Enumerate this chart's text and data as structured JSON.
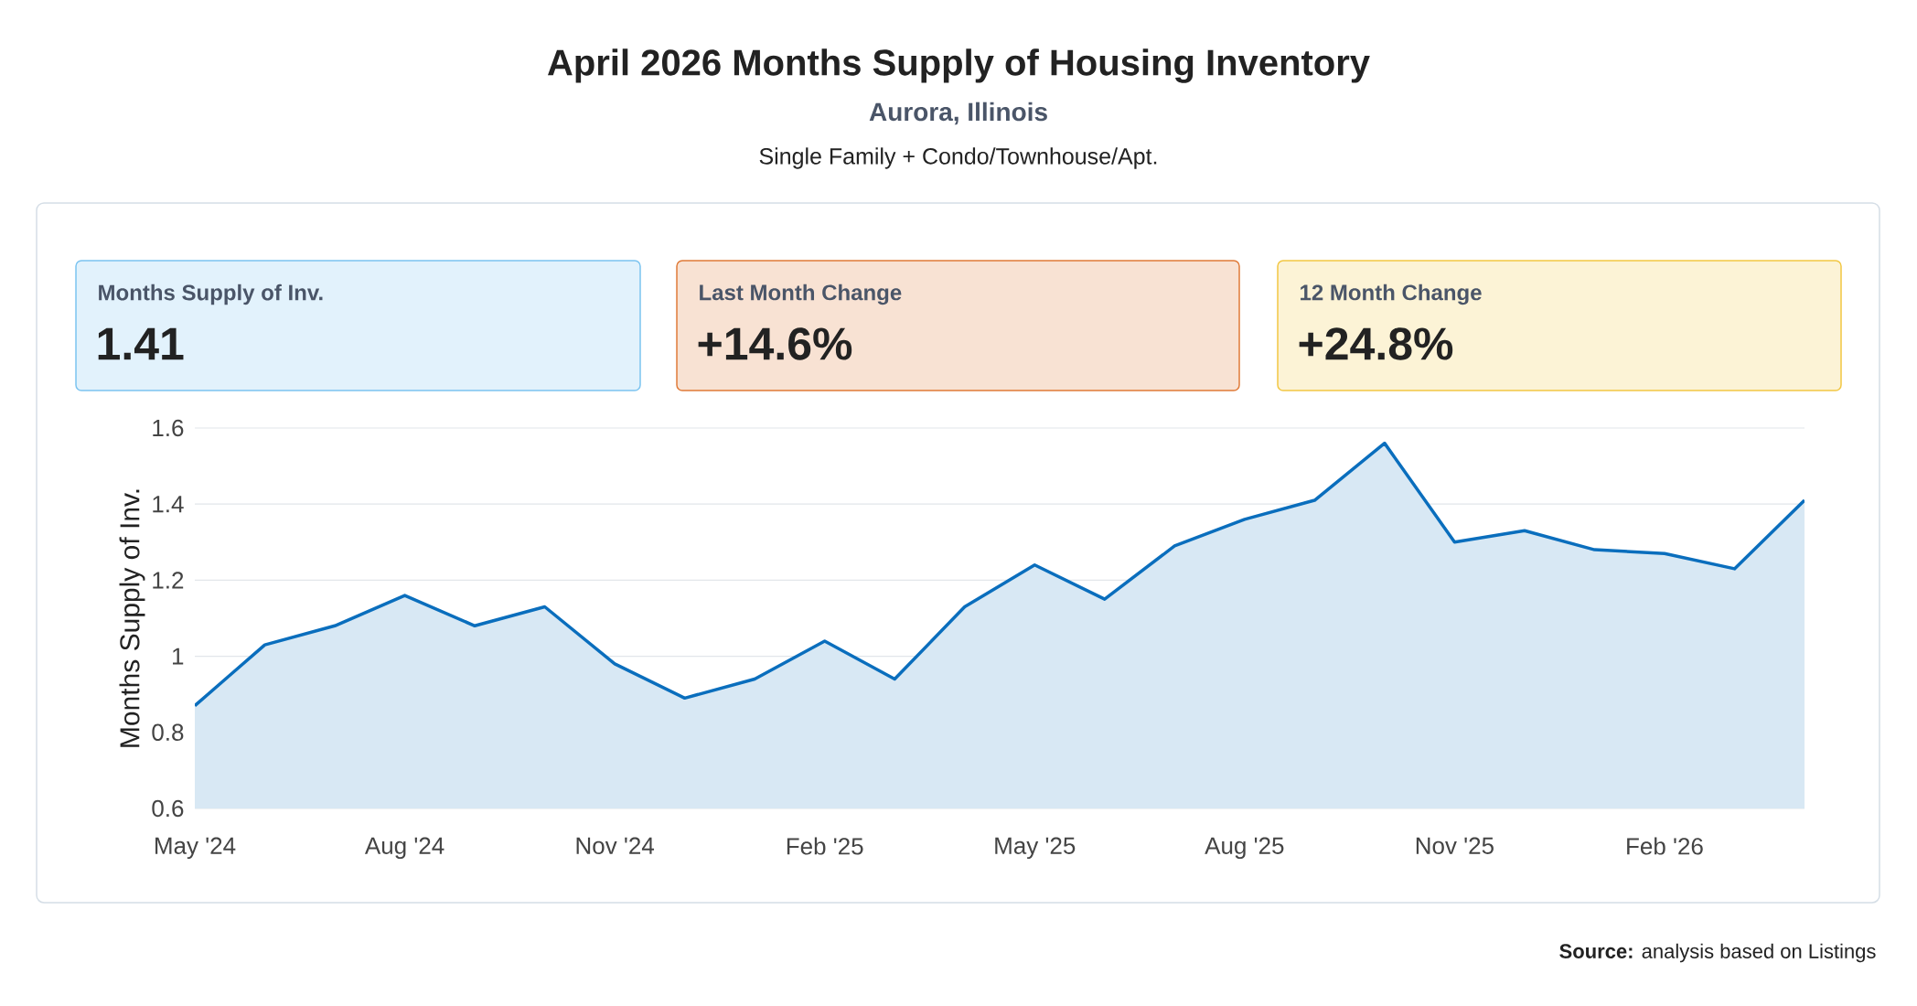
{
  "chart_data": [
    {
      "type": "area",
      "title": "April 2026 Months Supply of Housing Inventory",
      "subtitle": "Aurora, Illinois",
      "ylabel": "Months Supply of Inv.",
      "annotations": [
        "Single Family + Condo/Townhouse/Apt.",
        "**Source:** analysis based on Listings"
      ],
      "categories": [
        "May '24",
        null,
        null,
        "Aug '24",
        null,
        null,
        "Nov '24",
        null,
        null,
        "Feb '25",
        null,
        null,
        "May '25",
        null,
        null,
        "Aug '25",
        null,
        null,
        "Nov '25",
        null,
        null,
        "Feb '26",
        null,
        null
      ],
      "values": [
        0.87,
        1.03,
        1.08,
        1.16,
        1.08,
        1.13,
        0.98,
        0.89,
        0.94,
        1.04,
        0.94,
        1.13,
        1.24,
        1.15,
        1.29,
        1.36,
        1.41,
        1.56,
        1.3,
        1.33,
        1.28,
        1.27,
        1.23,
        1.41
      ],
      "color": "#0a6ebd",
      "ylim": [
        0.6,
        1.6
      ],
      "yticks": [
        0.6,
        0.8,
        1,
        1.2,
        1.4,
        1.6
      ],
      "grid": "y"
    },
    {
      "type": "other",
      "title": "Months Supply of Inv.",
      "annotations": [
        "1.41"
      ],
      "color": "#7cc4f0"
    },
    {
      "type": "other",
      "title": "Last Month Change",
      "annotations": [
        "+14.6%"
      ],
      "color": "#e07b39"
    },
    {
      "type": "other",
      "title": "12 Month Change",
      "annotations": [
        "+24.8%"
      ],
      "color": "#f2c744"
    }
  ]
}
